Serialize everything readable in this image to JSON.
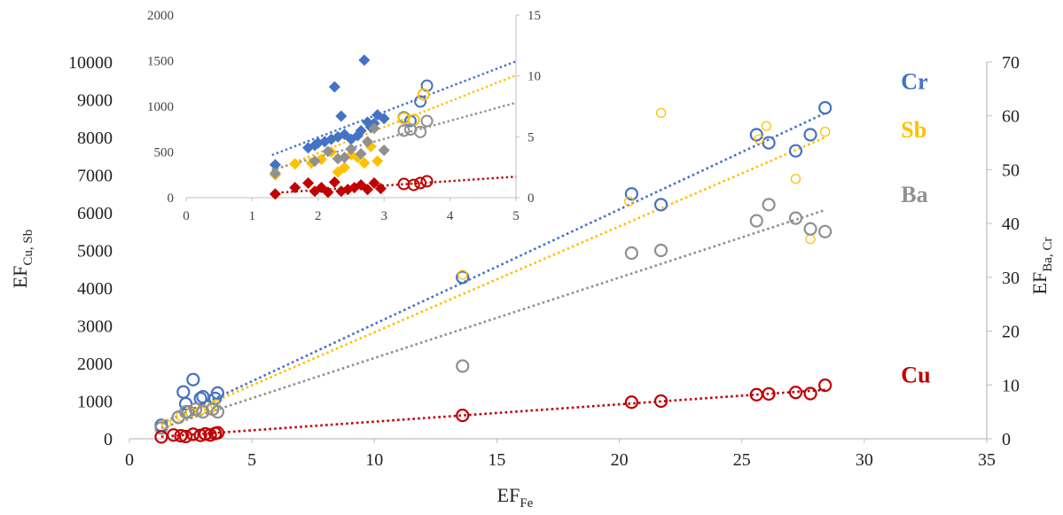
{
  "chart_data": [
    {
      "type": "scatter",
      "xlabel": "EF",
      "xlabel_sub": "Fe",
      "ylabel_left": "EF",
      "ylabel_left_sub": "Cu, Sb",
      "ylabel_right": "EF",
      "ylabel_right_sub": "Ba, Cr",
      "xlim": [
        0,
        35
      ],
      "xticks": [
        "0",
        "5",
        "10",
        "15",
        "20",
        "25",
        "30",
        "35"
      ],
      "ylim_left": [
        0,
        10000
      ],
      "yticks_left": [
        "0",
        "1000",
        "2000",
        "3000",
        "4000",
        "5000",
        "6000",
        "7000",
        "8000",
        "9000",
        "10000"
      ],
      "ylim_right": [
        0,
        70
      ],
      "yticks_right": [
        "0",
        "10",
        "20",
        "30",
        "40",
        "50",
        "60",
        "70"
      ],
      "grid": false,
      "series": [
        {
          "name": "Cr",
          "axis": "right",
          "color": "#4472C4",
          "marker": "open-circle",
          "x": [
            1.3,
            2.2,
            2.3,
            2.6,
            2.9,
            3.0,
            3.5,
            3.6,
            2.0,
            2.4,
            13.6,
            20.5,
            21.7,
            25.6,
            26.1,
            27.2,
            27.8,
            28.4
          ],
          "y": [
            2.5,
            8.7,
            6.5,
            11.0,
            7.5,
            7.8,
            7.5,
            8.5,
            4.0,
            5.0,
            30,
            45.5,
            43.5,
            56.5,
            55,
            53.5,
            56.5,
            61.5
          ],
          "trend": {
            "x": [
              1.3,
              28.4
            ],
            "y": [
              2.8,
              60.5
            ]
          }
        },
        {
          "name": "Sb",
          "axis": "left",
          "color": "#FFC000",
          "marker": "small-open-circle",
          "x": [
            1.5,
            2.1,
            2.5,
            2.9,
            3.3,
            3.5,
            13.6,
            20.4,
            21.7,
            25.7,
            26.0,
            27.2,
            27.8,
            28.4
          ],
          "y": [
            400,
            600,
            700,
            750,
            800,
            900,
            4350,
            6300,
            8650,
            7950,
            8300,
            6900,
            5300,
            8150
          ],
          "trend": {
            "x": [
              1.3,
              28.4
            ],
            "y": [
              380,
              8000
            ]
          }
        },
        {
          "name": "Ba",
          "axis": "right",
          "color": "#909090",
          "marker": "open-circle",
          "x": [
            1.3,
            2.0,
            2.3,
            2.7,
            3.0,
            3.4,
            3.6,
            13.6,
            20.5,
            21.7,
            25.6,
            26.1,
            27.2,
            27.8,
            28.4
          ],
          "y": [
            2.0,
            4.0,
            5.0,
            5.5,
            5.0,
            5.5,
            5.0,
            13.5,
            34.5,
            35,
            40.5,
            43.5,
            41,
            39,
            38.5
          ],
          "trend": {
            "x": [
              1.3,
              28.4
            ],
            "y": [
              2.0,
              42.5
            ]
          }
        },
        {
          "name": "Cu",
          "axis": "left",
          "color": "#C00000",
          "marker": "open-circle",
          "x": [
            1.3,
            1.8,
            2.1,
            2.3,
            2.6,
            2.9,
            3.1,
            3.3,
            3.5,
            3.6,
            13.6,
            20.5,
            21.7,
            25.6,
            26.1,
            27.2,
            27.8,
            28.4
          ],
          "y": [
            50,
            100,
            80,
            60,
            120,
            90,
            130,
            100,
            140,
            160,
            620,
            970,
            1000,
            1170,
            1190,
            1230,
            1200,
            1420
          ],
          "trend": {
            "x": [
              1.3,
              28.4
            ],
            "y": [
              55,
              1300
            ]
          }
        }
      ],
      "labels": [
        "Cr",
        "Sb",
        "Ba",
        "Cu"
      ]
    },
    {
      "type": "scatter",
      "name": "inset",
      "xlim": [
        0,
        5
      ],
      "xticks": [
        "0",
        "1",
        "2",
        "3",
        "4",
        "5"
      ],
      "ylim_left": [
        0,
        2000
      ],
      "yticks_left": [
        "0",
        "500",
        "1000",
        "1500",
        "2000"
      ],
      "ylim_right": [
        0,
        15
      ],
      "yticks_right": [
        "0",
        "5",
        "10",
        "15"
      ],
      "grid": false,
      "series": [
        {
          "name": "Cr",
          "axis": "right",
          "color": "#4472C4",
          "diamonds_x": [
            1.35,
            1.85,
            1.95,
            2.0,
            2.1,
            2.2,
            2.25,
            2.3,
            2.35,
            2.4,
            2.5,
            2.6,
            2.65,
            2.7,
            2.75,
            2.8,
            2.85,
            2.9,
            3.0
          ],
          "diamonds_y": [
            2.7,
            4.1,
            4.3,
            4.5,
            4.6,
            4.8,
            9.1,
            5.0,
            6.7,
            5.2,
            4.8,
            5.1,
            5.5,
            11.3,
            6.2,
            5.8,
            6.1,
            6.8,
            6.5
          ],
          "circles_x": [
            3.3,
            3.4,
            3.55,
            3.65
          ],
          "circles_y": [
            6.6,
            6.3,
            7.9,
            9.2
          ],
          "trend": {
            "x": [
              1.3,
              5.0
            ],
            "y": [
              3.5,
              11.2
            ]
          }
        },
        {
          "name": "Sb",
          "axis": "left",
          "color": "#FFC000",
          "diamonds_x": [
            1.35,
            1.65,
            1.9,
            2.05,
            2.2,
            2.3,
            2.4,
            2.5,
            2.6,
            2.7,
            2.8,
            2.9
          ],
          "diamonds_y": [
            250,
            370,
            380,
            420,
            500,
            280,
            330,
            470,
            440,
            380,
            560,
            400
          ],
          "circles_x": [
            3.3,
            3.45,
            3.6
          ],
          "circles_y": [
            870,
            850,
            1130
          ],
          "trend": {
            "x": [
              1.3,
              5.0
            ],
            "y": [
              290,
              1340
            ]
          }
        },
        {
          "name": "Ba",
          "axis": "right",
          "color": "#909090",
          "diamonds_x": [
            1.35,
            1.95,
            2.15,
            2.3,
            2.4,
            2.5,
            2.65,
            2.75,
            2.85,
            3.0
          ],
          "diamonds_y": [
            2.0,
            3.0,
            3.8,
            3.2,
            3.3,
            4.0,
            3.6,
            4.6,
            5.7,
            3.9
          ],
          "circles_x": [
            3.3,
            3.4,
            3.55,
            3.65
          ],
          "circles_y": [
            5.5,
            5.6,
            5.4,
            6.3
          ],
          "trend": {
            "x": [
              1.3,
              5.0
            ],
            "y": [
              2.3,
              7.8
            ]
          }
        },
        {
          "name": "Cu",
          "axis": "left",
          "color": "#C00000",
          "diamonds_x": [
            1.35,
            1.65,
            1.85,
            1.95,
            2.05,
            2.15,
            2.25,
            2.35,
            2.45,
            2.55,
            2.65,
            2.75,
            2.85,
            2.95
          ],
          "diamonds_y": [
            40,
            110,
            160,
            70,
            110,
            60,
            170,
            70,
            90,
            110,
            140,
            90,
            160,
            100
          ],
          "circles_x": [
            3.3,
            3.45,
            3.55,
            3.65
          ],
          "circles_y": [
            150,
            140,
            160,
            180
          ],
          "trend": {
            "x": [
              1.3,
              5.0
            ],
            "y": [
              50,
              230
            ]
          }
        }
      ]
    }
  ]
}
